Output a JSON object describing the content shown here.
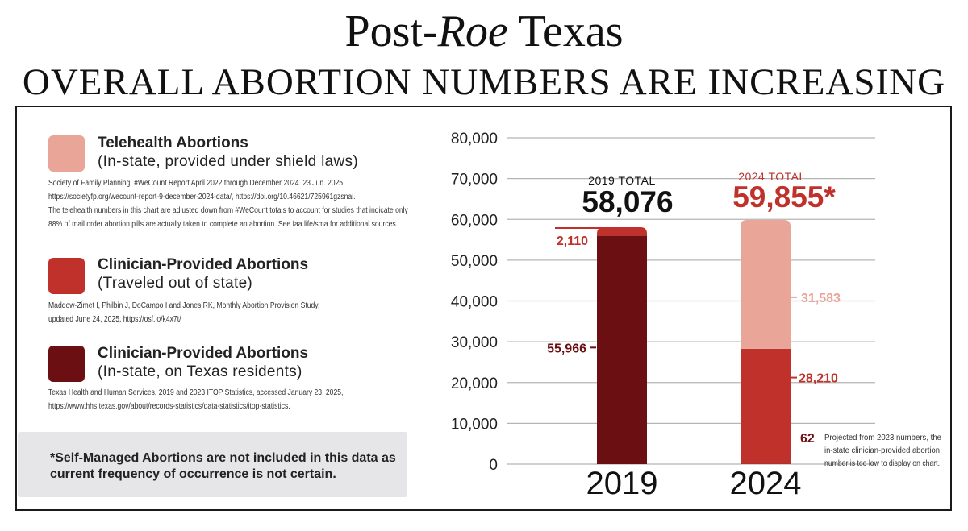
{
  "header": {
    "title_pre": "Post-",
    "title_italic": "Roe",
    "title_post": " Texas",
    "subtitle": "OVERALL ABORTION NUMBERS ARE INCREASING"
  },
  "legend": [
    {
      "title": "Telehealth Abortions",
      "sub": "(In-state, provided under shield laws)",
      "color": "#e8a598",
      "source": [
        "Society of Family Planning. #WeCount Report April 2022 through December 2024. 23 Jun. 2025,",
        "https://societyfp.org/wecount-report-9-december-2024-data/, https://doi.org/10.46621/725961gzsnai.",
        "The telehealth numbers in this chart are adjusted down from #WeCount totals to account for studies that indicate only",
        "88% of mail order abortion pills are actually taken to complete an abortion. See faa.life/sma for additional sources."
      ]
    },
    {
      "title": "Clinician-Provided Abortions",
      "sub": "(Traveled out of state)",
      "color": "#c0312b",
      "source": [
        "Maddow-Zimet I, Philbin J, DoCampo I and Jones RK, Monthly Abortion Provision Study,",
        "updated June 24, 2025, https://osf.io/k4x7t/"
      ]
    },
    {
      "title": "Clinician-Provided Abortions",
      "sub": "(In-state, on Texas residents)",
      "color": "#6b0f12",
      "source": [
        "Texas Health and Human Services, 2019 and 2023 ITOP Statistics, accessed January 23, 2025,",
        "https://www.hhs.texas.gov/about/records-statistics/data-statistics/itop-statistics."
      ]
    }
  ],
  "note": "*Self-Managed Abortions are not included in this data as current frequency of occurrence is not certain.",
  "chart_data": {
    "type": "bar",
    "stacked": true,
    "categories": [
      "2019",
      "2024"
    ],
    "series": [
      {
        "name": "Clinician-Provided Abortions (In-state, on Texas residents)",
        "color": "#6b0f12",
        "values": [
          55966,
          62
        ]
      },
      {
        "name": "Clinician-Provided Abortions (Traveled out of state)",
        "color": "#c0312b",
        "values": [
          2110,
          28210
        ]
      },
      {
        "name": "Telehealth Abortions (In-state, provided under shield laws)",
        "color": "#e8a598",
        "values": [
          0,
          31583
        ]
      }
    ],
    "yticks": [
      0,
      10000,
      20000,
      30000,
      40000,
      50000,
      60000,
      70000,
      80000
    ],
    "ytick_labels": [
      "0",
      "10,000",
      "20,000",
      "30,000",
      "40,000",
      "50,000",
      "60,000",
      "70,000",
      "80,000"
    ],
    "ylim": [
      0,
      80000
    ],
    "totals": [
      {
        "label": "2019 TOTAL",
        "value": "58,076",
        "color": "#111111",
        "label_color": "#111111"
      },
      {
        "label": "2024 TOTAL",
        "value": "59,855*",
        "color": "#c0312b",
        "label_color": "#c0312b"
      }
    ],
    "segment_labels": [
      {
        "text": "2,110",
        "color": "#c0312b"
      },
      {
        "text": "55,966",
        "color": "#6b0f12"
      },
      {
        "text": "31,583",
        "color": "#e8a598"
      },
      {
        "text": "28,210",
        "color": "#c0312b"
      },
      {
        "text": "62",
        "color": "#6b0f12"
      }
    ],
    "annotation": [
      "Projected from 2023 numbers, the",
      "in-state clinician-provided abortion",
      "number is too low to display on chart."
    ]
  }
}
